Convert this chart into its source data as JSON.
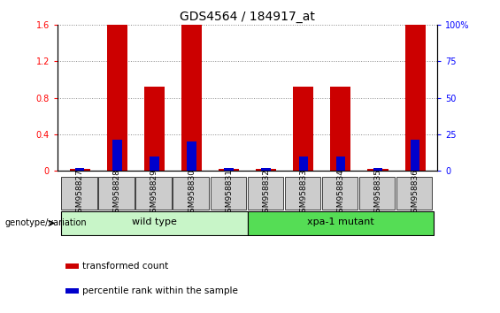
{
  "title": "GDS4564 / 184917_at",
  "samples": [
    "GSM958827",
    "GSM958828",
    "GSM958829",
    "GSM958830",
    "GSM958831",
    "GSM958832",
    "GSM958833",
    "GSM958834",
    "GSM958835",
    "GSM958836"
  ],
  "red_values": [
    0.02,
    1.6,
    0.92,
    1.6,
    0.02,
    0.02,
    0.92,
    0.92,
    0.02,
    1.6
  ],
  "blue_values": [
    1.5,
    21.0,
    9.5,
    20.0,
    1.5,
    1.5,
    9.5,
    9.5,
    1.5,
    21.0
  ],
  "ylim_left": [
    0,
    1.6
  ],
  "ylim_right": [
    0,
    100
  ],
  "yticks_left": [
    0,
    0.4,
    0.8,
    1.2,
    1.6
  ],
  "ytick_labels_left": [
    "0",
    "0.4",
    "0.8",
    "1.2",
    "1.6"
  ],
  "yticks_right": [
    0,
    25,
    50,
    75,
    100
  ],
  "ytick_labels_right": [
    "0",
    "25",
    "50",
    "75",
    "100%"
  ],
  "groups": [
    {
      "label": "wild type",
      "start": 0,
      "end": 4,
      "color": "#c8f5c8"
    },
    {
      "label": "xpa-1 mutant",
      "start": 5,
      "end": 9,
      "color": "#55dd55"
    }
  ],
  "group_label": "genotype/variation",
  "legend_items": [
    {
      "color": "#cc0000",
      "label": "transformed count"
    },
    {
      "color": "#0000cc",
      "label": "percentile rank within the sample"
    }
  ],
  "red_bar_width": 0.55,
  "blue_bar_width": 0.25,
  "red_color": "#cc0000",
  "blue_color": "#0000cc",
  "title_fontsize": 10,
  "tick_fontsize": 7,
  "sample_bg_color": "#cccccc",
  "grid_color": "#888888",
  "wt_color": "#c8f5c8",
  "mut_color": "#55dd55"
}
